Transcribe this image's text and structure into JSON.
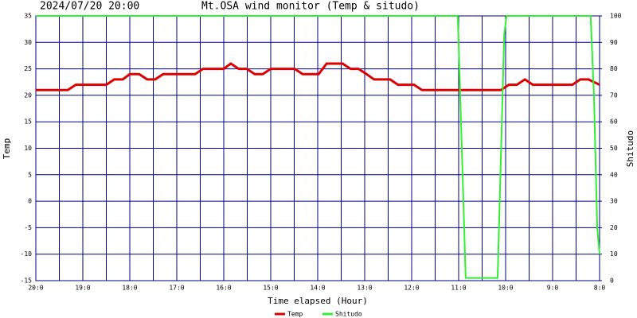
{
  "chart_data": {
    "type": "line",
    "title": "Mt.OSA wind monitor (Temp & situdo)",
    "subtitle": "2024/07/20 20:00",
    "x_label": "Time elapsed (Hour)",
    "y_label": "Temp",
    "y2_label": "Shitudo",
    "xlim": [
      0,
      12
    ],
    "xticks": [
      {
        "value": 0,
        "label": "20:0"
      },
      {
        "value": 1,
        "label": "19:0"
      },
      {
        "value": 2,
        "label": "18:0"
      },
      {
        "value": 3,
        "label": "17:0"
      },
      {
        "value": 4,
        "label": "16:0"
      },
      {
        "value": 5,
        "label": "15:0"
      },
      {
        "value": 6,
        "label": "14:0"
      },
      {
        "value": 7,
        "label": "13:0"
      },
      {
        "value": 8,
        "label": "12:0"
      },
      {
        "value": 9,
        "label": "11:0"
      },
      {
        "value": 10,
        "label": "10:0"
      },
      {
        "value": 11,
        "label": "9:0"
      },
      {
        "value": 12,
        "label": "8:0"
      }
    ],
    "ylim": [
      -15,
      35
    ],
    "yticks": [
      -15,
      -10,
      -5,
      0,
      5,
      10,
      15,
      20,
      25,
      30,
      35
    ],
    "y2lim": [
      0,
      100
    ],
    "y2ticks": [
      0,
      10,
      20,
      30,
      40,
      50,
      60,
      70,
      80,
      90,
      100
    ],
    "grid": true,
    "grid_color": "#000080",
    "legend": "bottom",
    "series": [
      {
        "name": "Temp",
        "color": "#dd0000",
        "axis": "y",
        "x": [
          0,
          0.68,
          0.85,
          1.5,
          1.67,
          1.85,
          2.0,
          2.2,
          2.37,
          2.54,
          2.71,
          3.39,
          3.56,
          4.0,
          4.15,
          4.32,
          4.49,
          4.66,
          4.83,
          5.0,
          5.51,
          5.68,
          6.02,
          6.19,
          6.53,
          6.7,
          6.87,
          7.04,
          7.2,
          7.54,
          7.71,
          8.05,
          8.22,
          9.9,
          10.07,
          10.24,
          10.41,
          10.58,
          11.42,
          11.59,
          11.76,
          12
        ],
        "values": [
          21,
          21,
          22,
          22,
          23,
          23,
          24,
          24,
          23,
          23,
          24,
          24,
          25,
          25,
          26,
          25,
          25,
          24,
          24,
          25,
          25,
          24,
          24,
          26,
          26,
          25,
          25,
          24,
          23,
          23,
          22,
          22,
          21,
          21,
          22,
          22,
          23,
          22,
          22,
          23,
          23,
          22
        ]
      },
      {
        "name": "Shitudo",
        "color": "#33ee33",
        "axis": "y2",
        "x": [
          0,
          8.98,
          9.0,
          9.15,
          9.83,
          9.97,
          10.02,
          11.81,
          11.88,
          11.95,
          12
        ],
        "values": [
          100,
          100,
          90,
          1,
          1,
          93,
          100,
          100,
          70,
          20,
          10
        ]
      }
    ]
  }
}
